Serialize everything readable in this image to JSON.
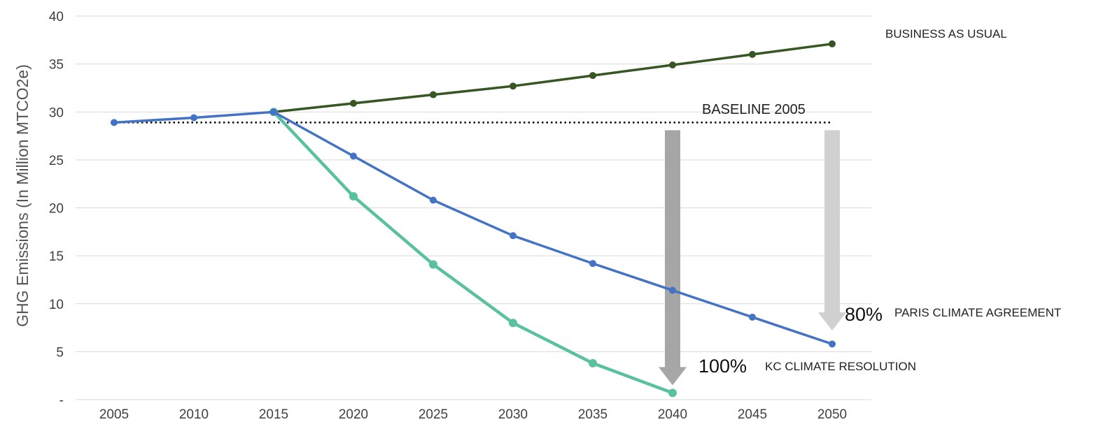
{
  "chart_data": {
    "type": "line",
    "title": "",
    "xlabel": "",
    "ylabel": "GHG Emissions (In Million  MTCO2e)",
    "x": [
      2005,
      2010,
      2015,
      2020,
      2025,
      2030,
      2035,
      2040,
      2045,
      2050
    ],
    "x_tick_labels": [
      "2005",
      "2010",
      "2015",
      "2020",
      "2025",
      "2030",
      "2035",
      "2040",
      "2045",
      "2050"
    ],
    "y_tick_labels": [
      "-",
      "5",
      "10",
      "15",
      "20",
      "25",
      "30",
      "35",
      "40"
    ],
    "ylim": [
      0,
      40
    ],
    "grid": "horizontal",
    "series": [
      {
        "name": "BUSINESS AS USUAL",
        "color": "#375623",
        "x": [
          2015,
          2020,
          2025,
          2030,
          2035,
          2040,
          2045,
          2050
        ],
        "values": [
          30.0,
          30.9,
          31.8,
          32.7,
          33.8,
          34.9,
          36.0,
          37.1
        ]
      },
      {
        "name": "PARIS CLIMATE AGREEMENT",
        "color": "#4472c4",
        "x": [
          2005,
          2010,
          2015,
          2020,
          2025,
          2030,
          2035,
          2040,
          2045,
          2050
        ],
        "values": [
          28.9,
          29.4,
          30.0,
          25.4,
          20.8,
          17.1,
          14.2,
          11.4,
          8.6,
          5.8
        ]
      },
      {
        "name": "KC CLIMATE RESOLUTION",
        "color": "#5ac1a0",
        "x": [
          2015,
          2020,
          2025,
          2030,
          2035,
          2040
        ],
        "values": [
          30.0,
          21.2,
          14.1,
          8.0,
          3.8,
          0.7
        ]
      }
    ],
    "baseline": {
      "name": "BASELINE 2005",
      "value": 28.9,
      "x_range": [
        2005,
        2050
      ]
    },
    "reduction_arrows": [
      {
        "x": 2040,
        "from": 28.9,
        "to": 1.5,
        "color": "#a6a6a6"
      },
      {
        "x": 2050,
        "from": 28.9,
        "to": 7.2,
        "color": "#d0d0d0"
      }
    ],
    "annotations": [
      {
        "pct": "80%",
        "text": "PARIS CLIMATE AGREEMENT"
      },
      {
        "pct": "100%",
        "text": "KC CLIMATE RESOLUTION"
      }
    ]
  }
}
